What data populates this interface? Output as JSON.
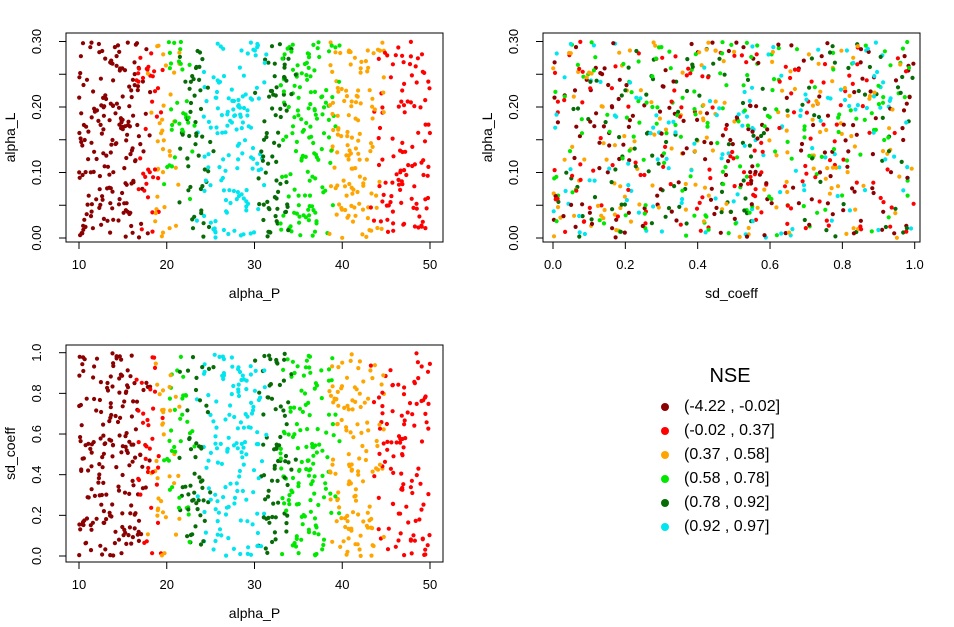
{
  "figure": {
    "background_color": "#FFFFFF"
  },
  "chart_data": {
    "type": "scatter",
    "description_visible": "Three scatter panels of uniformly sampled parameter points, colored by NSE class bins; color bands are determined by alpha_P",
    "panels": [
      {
        "id": "alphaL-vs-alphaP",
        "xlabel": "alpha_P",
        "ylabel": "alpha_L",
        "x_var": "alpha_P",
        "y_var": "alpha_L",
        "xlim": [
          10,
          50
        ],
        "ylim": [
          0.0,
          0.3
        ],
        "x_ticks": [
          10,
          20,
          30,
          40,
          50
        ],
        "x_tick_labels": [
          "10",
          "20",
          "30",
          "40",
          "50"
        ],
        "y_ticks": [
          0,
          0.05,
          0.1,
          0.15,
          0.2,
          0.25,
          0.3
        ],
        "y_tick_labels": [
          "0.00",
          null,
          "0.10",
          null,
          "0.20",
          null,
          "0.30"
        ]
      },
      {
        "id": "alphaL-vs-sdcoeff",
        "xlabel": "sd_coeff",
        "ylabel": "alpha_L",
        "x_var": "sd_coeff",
        "y_var": "alpha_L",
        "xlim": [
          0.0,
          1.0
        ],
        "ylim": [
          0.0,
          0.3
        ],
        "x_ticks": [
          0,
          0.2,
          0.4,
          0.6,
          0.8,
          1.0
        ],
        "x_tick_labels": [
          "0.0",
          "0.2",
          "0.4",
          "0.6",
          "0.8",
          "1.0"
        ],
        "y_ticks": [
          0,
          0.05,
          0.1,
          0.15,
          0.2,
          0.25,
          0.3
        ],
        "y_tick_labels": [
          "0.00",
          null,
          "0.10",
          null,
          "0.20",
          null,
          "0.30"
        ]
      },
      {
        "id": "sdcoeff-vs-alphaP",
        "xlabel": "alpha_P",
        "ylabel": "sd_coeff",
        "x_var": "alpha_P",
        "y_var": "sd_coeff",
        "xlim": [
          10,
          50
        ],
        "ylim": [
          0.0,
          1.0
        ],
        "x_ticks": [
          10,
          20,
          30,
          40,
          50
        ],
        "x_tick_labels": [
          "10",
          "20",
          "30",
          "40",
          "50"
        ],
        "y_ticks": [
          0,
          0.2,
          0.4,
          0.6,
          0.8,
          1.0
        ],
        "y_tick_labels": [
          "0.0",
          "0.2",
          "0.4",
          "0.6",
          "0.8",
          "1.0"
        ]
      }
    ],
    "legend": {
      "title": "NSE",
      "entries": [
        {
          "label": "(-4.22 , -0.02]",
          "class": "darkred",
          "color": "#8B0000"
        },
        {
          "label": "(-0.02 , 0.37]",
          "class": "red",
          "color": "#FF0000"
        },
        {
          "label": "(0.37 , 0.58]",
          "class": "orange",
          "color": "#FFA500"
        },
        {
          "label": "(0.58 , 0.78]",
          "class": "green",
          "color": "#00E800"
        },
        {
          "label": "(0.78 , 0.92]",
          "class": "darkgreen",
          "color": "#076C07"
        },
        {
          "label": "(0.92 , 0.97]",
          "class": "cyan",
          "color": "#00E5EE"
        }
      ],
      "position": "bottom-right-quadrant"
    },
    "class_colors": {
      "darkred": "#8B0000",
      "red": "#FF0000",
      "orange": "#FFA500",
      "green": "#00E800",
      "darkgreen": "#076C07",
      "cyan": "#00E5EE"
    },
    "points_spec": {
      "seed": 7,
      "n": 900,
      "alpha_P_range": [
        10,
        50
      ],
      "alpha_L_range": [
        0.0,
        0.3
      ],
      "sd_coeff_range": [
        0.0,
        1.0
      ],
      "boundary_jitter": 1.2,
      "point_radius": 2.1,
      "nse_class_by_alpha_P": [
        {
          "upto": 17.3,
          "class": "darkred"
        },
        {
          "upto": 18.7,
          "class": "red"
        },
        {
          "upto": 20.6,
          "class": "orange"
        },
        {
          "upto": 22.3,
          "class": "green"
        },
        {
          "upto": 24.4,
          "class": "darkgreen"
        },
        {
          "upto": 30.6,
          "class": "cyan"
        },
        {
          "upto": 33.6,
          "class": "darkgreen"
        },
        {
          "upto": 38.7,
          "class": "green"
        },
        {
          "upto": 44.2,
          "class": "orange"
        },
        {
          "upto": 52.0,
          "class": "red"
        }
      ]
    },
    "grid": false,
    "axis_color": "#000000",
    "text_color": "#000000"
  }
}
